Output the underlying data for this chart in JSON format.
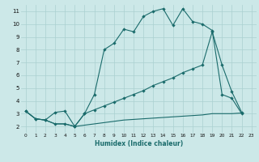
{
  "xlabel": "Humidex (Indice chaleur)",
  "bg_color": "#cce8e8",
  "grid_color": "#aad0d0",
  "line_color": "#1a6b6b",
  "xlim": [
    -0.5,
    23.5
  ],
  "ylim": [
    1.5,
    11.5
  ],
  "xticks": [
    0,
    1,
    2,
    3,
    4,
    5,
    6,
    7,
    8,
    9,
    10,
    11,
    12,
    13,
    14,
    15,
    16,
    17,
    18,
    19,
    20,
    21,
    22,
    23
  ],
  "yticks": [
    2,
    3,
    4,
    5,
    6,
    7,
    8,
    9,
    10,
    11
  ],
  "line1_x": [
    0,
    1,
    2,
    3,
    4,
    5,
    6,
    7,
    8,
    9,
    10,
    11,
    12,
    13,
    14,
    15,
    16,
    17,
    18,
    19,
    20,
    21,
    22
  ],
  "line1_y": [
    3.2,
    2.6,
    2.5,
    2.2,
    2.2,
    2.0,
    3.0,
    4.5,
    8.0,
    8.5,
    9.6,
    9.4,
    10.6,
    11.0,
    11.2,
    9.9,
    11.2,
    10.2,
    10.0,
    9.5,
    4.5,
    4.2,
    3.0
  ],
  "line2_x": [
    0,
    1,
    2,
    3,
    4,
    5,
    6,
    7,
    8,
    9,
    10,
    11,
    12,
    13,
    14,
    15,
    16,
    17,
    18,
    19,
    20,
    21,
    22
  ],
  "line2_y": [
    3.2,
    2.6,
    2.5,
    3.1,
    3.2,
    2.0,
    3.0,
    3.3,
    3.6,
    3.9,
    4.2,
    4.5,
    4.8,
    5.2,
    5.5,
    5.8,
    6.2,
    6.5,
    6.8,
    9.4,
    6.8,
    4.7,
    3.1
  ],
  "line3_x": [
    0,
    1,
    2,
    3,
    4,
    5,
    6,
    7,
    8,
    9,
    10,
    11,
    12,
    13,
    14,
    15,
    16,
    17,
    18,
    19,
    20,
    21,
    22
  ],
  "line3_y": [
    3.2,
    2.6,
    2.5,
    2.2,
    2.2,
    2.0,
    2.1,
    2.2,
    2.3,
    2.4,
    2.5,
    2.55,
    2.6,
    2.65,
    2.7,
    2.75,
    2.8,
    2.85,
    2.9,
    3.0,
    3.0,
    3.0,
    3.05
  ]
}
